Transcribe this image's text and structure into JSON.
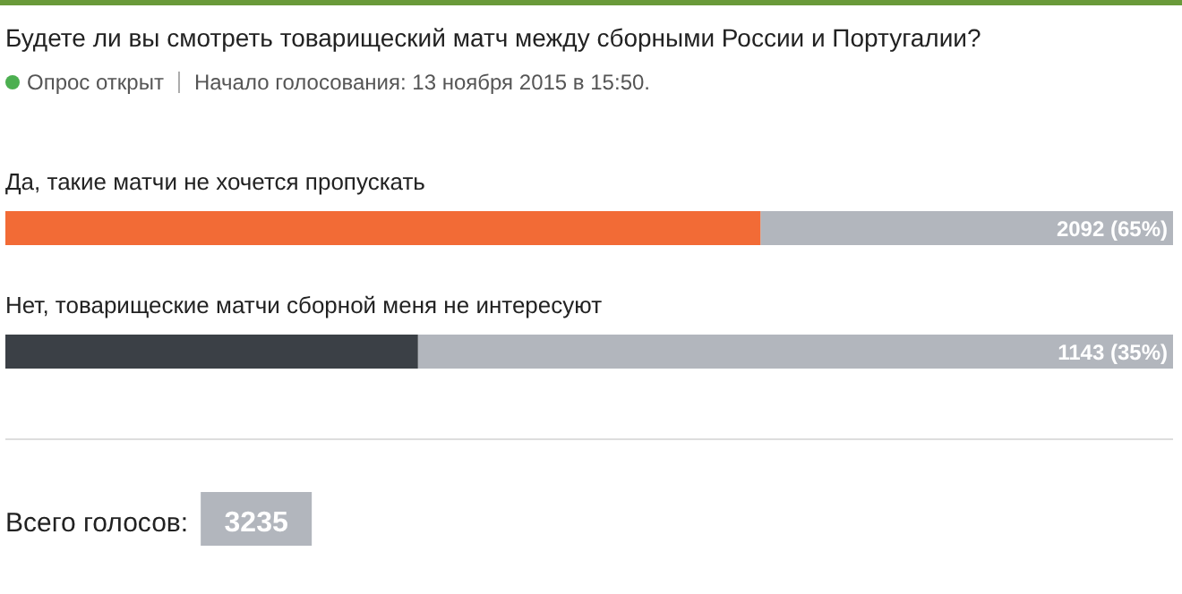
{
  "chart_data": {
    "type": "bar",
    "orientation": "horizontal",
    "title": "Будете ли вы смотреть товарищеский матч между сборными России и Португалии?",
    "subtitle": "Опрос открыт",
    "categories": [
      "Да, такие матчи не хочется пропускать",
      "Нет, товарищеские матчи сборной меня не интересуют"
    ],
    "values": [
      2092,
      1143
    ],
    "colors": [
      "#f26b36",
      "#3b4046"
    ],
    "value_labels": [
      "2092 (65%)",
      "1143 (35%)"
    ],
    "xlim": [
      0,
      3235
    ],
    "annotations": [
      "Начало голосования: 13 ноября 2015 в 15:50.",
      "Всего голосов:",
      "3235"
    ]
  }
}
